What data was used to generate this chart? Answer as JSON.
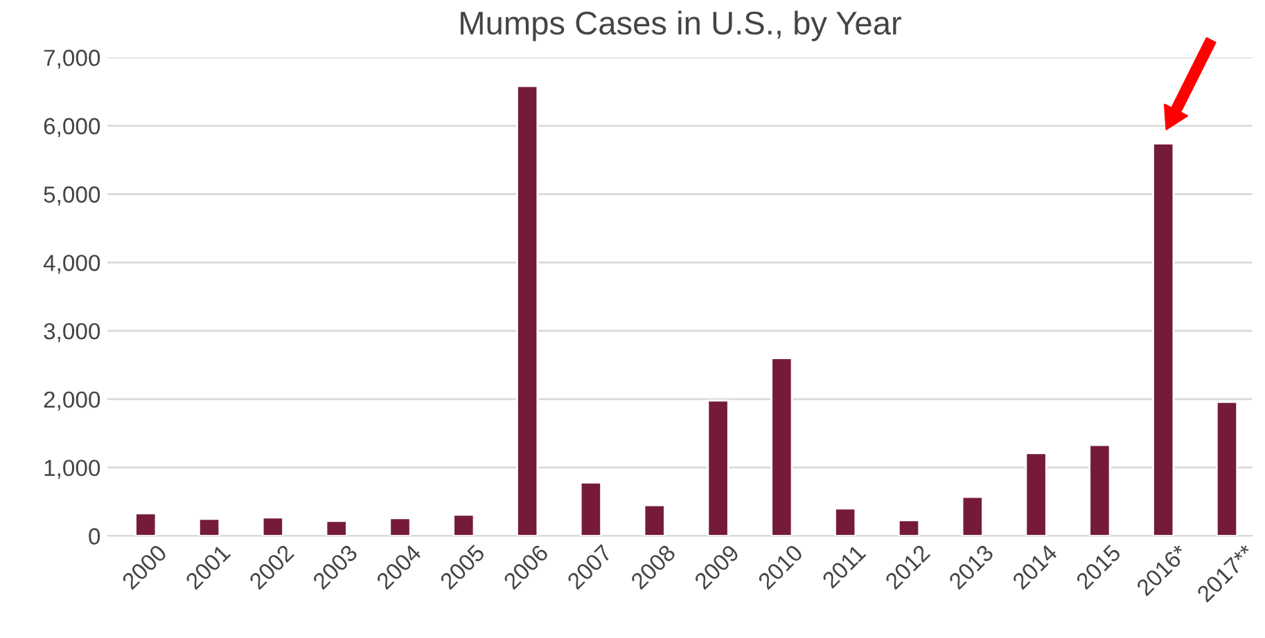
{
  "chart_data": {
    "type": "bar",
    "title": "Mumps Cases in U.S., by Year",
    "categories": [
      "2000",
      "2001",
      "2002",
      "2003",
      "2004",
      "2005",
      "2006",
      "2007",
      "2008",
      "2009",
      "2010",
      "2011",
      "2012",
      "2013",
      "2014",
      "2015",
      "2016*",
      "2017**"
    ],
    "values": [
      330,
      250,
      270,
      220,
      260,
      310,
      6580,
      780,
      450,
      1980,
      2600,
      400,
      230,
      570,
      1210,
      1330,
      5740,
      1960
    ],
    "color": "#751a3a",
    "ylim": [
      0,
      7000
    ],
    "yticks": [
      {
        "value": 0,
        "label": "0"
      },
      {
        "value": 1000,
        "label": "1,000"
      },
      {
        "value": 2000,
        "label": "2,000"
      },
      {
        "value": 3000,
        "label": "3,000"
      },
      {
        "value": 4000,
        "label": "4,000"
      },
      {
        "value": 5000,
        "label": "5,000"
      },
      {
        "value": 6000,
        "label": "6,000"
      },
      {
        "value": 7000,
        "label": "7,000"
      }
    ],
    "grid": "y",
    "legend": false
  }
}
